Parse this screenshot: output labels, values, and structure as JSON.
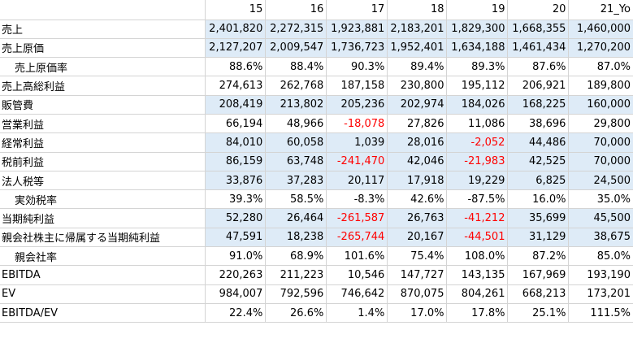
{
  "columns": [
    "",
    "15",
    "16",
    "17",
    "18",
    "19",
    "20",
    "21_Yo"
  ],
  "colors": {
    "highlight": "#deebf7",
    "negative": "#ff0000",
    "grid": "#d4d4d4"
  },
  "rows": [
    {
      "label": "売上",
      "indent": false,
      "highlight": true,
      "values": [
        "2,401,820",
        "2,272,315",
        "1,923,881",
        "2,183,201",
        "1,829,300",
        "1,668,355",
        "1,460,000"
      ]
    },
    {
      "label": "売上原価",
      "indent": false,
      "highlight": true,
      "values": [
        "2,127,207",
        "2,009,547",
        "1,736,723",
        "1,952,401",
        "1,634,188",
        "1,461,434",
        "1,270,200"
      ]
    },
    {
      "label": "売上原価率",
      "indent": true,
      "highlight": false,
      "values": [
        "88.6%",
        "88.4%",
        "90.3%",
        "89.4%",
        "89.3%",
        "87.6%",
        "87.0%"
      ]
    },
    {
      "label": "売上高総利益",
      "indent": false,
      "highlight": false,
      "values": [
        "274,613",
        "262,768",
        "187,158",
        "230,800",
        "195,112",
        "206,921",
        "189,800"
      ]
    },
    {
      "label": "販管費",
      "indent": false,
      "highlight": true,
      "values": [
        "208,419",
        "213,802",
        "205,236",
        "202,974",
        "184,026",
        "168,225",
        "160,000"
      ]
    },
    {
      "label": "営業利益",
      "indent": false,
      "highlight": false,
      "values": [
        "66,194",
        "48,966",
        "-18,078",
        "27,826",
        "11,086",
        "38,696",
        "29,800"
      ]
    },
    {
      "label": "経常利益",
      "indent": false,
      "highlight": true,
      "values": [
        "84,010",
        "60,058",
        "1,039",
        "28,016",
        "-2,052",
        "44,486",
        "70,000"
      ]
    },
    {
      "label": "税前利益",
      "indent": false,
      "highlight": true,
      "values": [
        "86,159",
        "63,748",
        "-241,470",
        "42,046",
        "-21,983",
        "42,525",
        "70,000"
      ]
    },
    {
      "label": "法人税等",
      "indent": false,
      "highlight": true,
      "values": [
        "33,876",
        "37,283",
        "20,117",
        "17,918",
        "19,229",
        "6,825",
        "24,500"
      ]
    },
    {
      "label": "実効税率",
      "indent": true,
      "highlight": false,
      "values": [
        "39.3%",
        "58.5%",
        "-8.3%",
        "42.6%",
        "-87.5%",
        "16.0%",
        "35.0%"
      ]
    },
    {
      "label": "当期純利益",
      "indent": false,
      "highlight": true,
      "values": [
        "52,280",
        "26,464",
        "-261,587",
        "26,763",
        "-41,212",
        "35,699",
        "45,500"
      ]
    },
    {
      "label": "親会社株主に帰属する当期純利益",
      "indent": false,
      "highlight": true,
      "values": [
        "47,591",
        "18,238",
        "-265,744",
        "20,167",
        "-44,501",
        "31,129",
        "38,675"
      ]
    },
    {
      "label": "親会社率",
      "indent": true,
      "highlight": false,
      "values": [
        "91.0%",
        "68.9%",
        "101.6%",
        "75.4%",
        "108.0%",
        "87.2%",
        "85.0%"
      ]
    },
    {
      "label": "EBITDA",
      "indent": false,
      "highlight": false,
      "values": [
        "220,263",
        "211,223",
        "10,546",
        "147,727",
        "143,135",
        "167,969",
        "193,190"
      ]
    },
    {
      "label": "EV",
      "indent": false,
      "highlight": false,
      "values": [
        "984,007",
        "792,596",
        "746,642",
        "870,075",
        "804,261",
        "668,213",
        "173,201"
      ]
    },
    {
      "label": "EBITDA/EV",
      "indent": false,
      "highlight": false,
      "values": [
        "22.4%",
        "26.6%",
        "1.4%",
        "17.0%",
        "17.8%",
        "25.1%",
        "111.5%"
      ]
    }
  ],
  "negative_cells": [
    [
      5,
      2
    ],
    [
      6,
      4
    ],
    [
      7,
      2
    ],
    [
      7,
      4
    ],
    [
      10,
      2
    ],
    [
      10,
      4
    ],
    [
      11,
      2
    ],
    [
      11,
      4
    ]
  ]
}
